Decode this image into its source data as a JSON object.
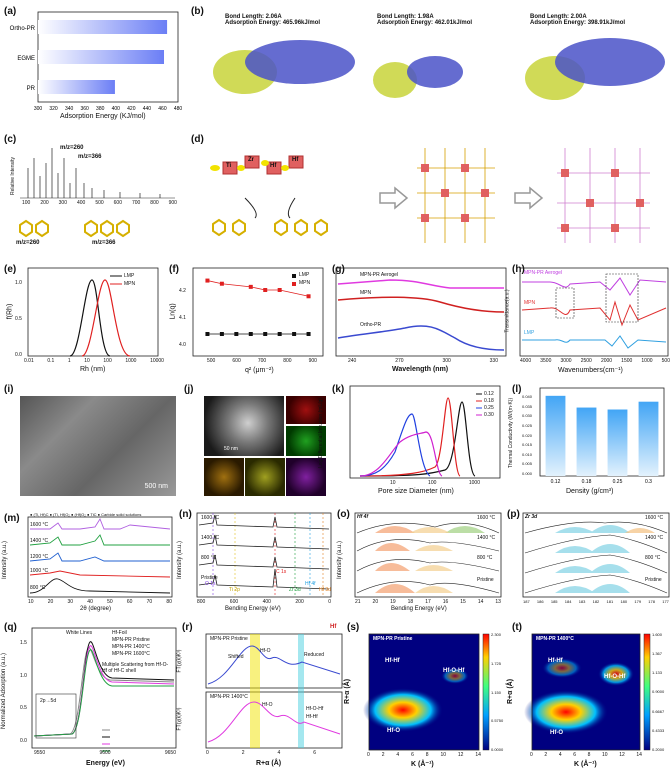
{
  "panels": {
    "a": {
      "label": "(a)",
      "xlabel": "Adsorption Energy (KJ/mol)",
      "ticks": [
        "300",
        "320",
        "340",
        "360",
        "380",
        "400",
        "420",
        "440",
        "460",
        "480"
      ]
    },
    "b": {
      "label": "(b)",
      "items": [
        {
          "bond": "Bond Length:",
          "bond_val": "2.06A",
          "energy": "Adsorption Energy:",
          "energy_val": "465.96kJ/mol"
        },
        {
          "bond": "Bond Length:",
          "bond_val": "1.98A",
          "energy": "Adsorption Energy:",
          "energy_val": "462.01kJ/mol"
        },
        {
          "bond": "Bond Length:",
          "bond_val": "2.00A",
          "energy": "Adsorption Energy:",
          "energy_val": "398.91kJ/mol"
        }
      ]
    },
    "c": {
      "label": "(c)",
      "ylabel": "Relative Intensity",
      "peak1": "m/z=260",
      "peak2": "m/z=366",
      "xticks": [
        "100",
        "200",
        "300",
        "400",
        "500",
        "600",
        "700",
        "800",
        "900"
      ],
      "mol1": "m/z=260",
      "mol2": "m/z=366"
    },
    "d": {
      "label": "(d)",
      "metals": [
        "Ti",
        "Zr",
        "Hf",
        "Hf"
      ]
    },
    "e": {
      "label": "(e)",
      "ylabel": "f(Rh)",
      "xlabel": "Rh (nm)",
      "legend": [
        "LMP",
        "MPN"
      ],
      "xticks": [
        "0.01",
        "0.1",
        "1",
        "10",
        "100",
        "1000",
        "10000"
      ],
      "yticks": [
        "0.0",
        "0.5",
        "1.0"
      ]
    },
    "f": {
      "label": "(f)",
      "ylabel": "Ln(q)",
      "xlabel": "q² (μm⁻²)",
      "legend": [
        "LMP",
        "MPN"
      ],
      "xticks": [
        "500",
        "600",
        "700",
        "800",
        "900"
      ],
      "yticks": [
        "4.0",
        "4.1",
        "4.2"
      ]
    },
    "g": {
      "label": "(g)",
      "xlabel": "Wavelength (nm)",
      "curves": [
        "MPN-PR Aerogel",
        "MPN",
        "Ortho-PR"
      ],
      "xticks": [
        "240",
        "270",
        "300",
        "330"
      ]
    },
    "h": {
      "label": "(h)",
      "ylabel": "Transmittance(a.u.)",
      "xlabel": "Wavenumbers(cm⁻¹)",
      "curves": [
        "MPN-PR Aerogel",
        "MPN",
        "LMP"
      ],
      "xticks": [
        "4000",
        "3500",
        "3000",
        "2500",
        "2000",
        "1500",
        "1000",
        "500"
      ]
    },
    "i": {
      "label": "(i)",
      "scale": "500 nm"
    },
    "j": {
      "label": "(j)",
      "scale": "50 nm"
    },
    "k": {
      "label": "(k)",
      "ylabel": "Log Differential Intrusion (mL/g)",
      "xlabel": "Pore size Diameter (nm)",
      "legend": [
        "0.12",
        "0.18",
        "0.25",
        "0.30"
      ],
      "xticks": [
        "10",
        "100",
        "1000"
      ],
      "yticks": [
        "0",
        "1",
        "2",
        "3",
        "4",
        "5",
        "6",
        "7",
        "8"
      ]
    },
    "l": {
      "label": "(l)",
      "ylabel": "Thermal Conductivity (W/(m·K))",
      "xlabel": "Density (g/cm³)",
      "yticks": [
        "0.000",
        "0.005",
        "0.010",
        "0.015",
        "0.020",
        "0.025",
        "0.030",
        "0.035",
        "0.040"
      ]
    },
    "m": {
      "label": "(m)",
      "ylabel": "Intensity (a.u.)",
      "xlabel": "2θ (degree)",
      "temps": [
        "1600 °C",
        "1400 °C",
        "1200 °C",
        "1000 °C",
        "800 °C"
      ],
      "legend": "● (Ti, Hf)C ● (Ti, Hf)O₂ ● (Hf)O₂ ● TiC ● Carbide solid solutions",
      "xticks": [
        "10",
        "20",
        "30",
        "40",
        "50",
        "60",
        "70",
        "80"
      ]
    },
    "n": {
      "label": "(n)",
      "ylabel": "Intensity (a.u.)",
      "xlabel": "Bending Energy (eV)",
      "temps": [
        "1600 °C",
        "1400 °C",
        "800 °C",
        "Pristine"
      ],
      "peaks": [
        "O 1s",
        "Ti 2p",
        "C 1s",
        "Zr 3d",
        "Hf 4f",
        "Hf 3d"
      ],
      "xticks": [
        "800",
        "600",
        "400",
        "200",
        "0"
      ]
    },
    "o": {
      "label": "(o)",
      "title": "Hf 4f",
      "ylabel": "Intensity (a.u.)",
      "xlabel": "Bending Energy (eV)",
      "temps": [
        "1600 °C",
        "1400 °C",
        "800 °C",
        "Pristine"
      ],
      "xticks": [
        "21",
        "20",
        "19",
        "18",
        "17",
        "16",
        "15",
        "14",
        "13"
      ]
    },
    "p": {
      "label": "(p)",
      "title": "Zr 3d",
      "temps": [
        "1600 °C",
        "1400 °C",
        "800 °C",
        "Pristine"
      ],
      "xticks": [
        "187",
        "186",
        "185",
        "184",
        "183",
        "182",
        "181",
        "180",
        "179",
        "178",
        "177"
      ]
    },
    "q": {
      "label": "(q)",
      "ylabel": "Normalized Adsorption (a.u.)",
      "xlabel": "Energy (eV)",
      "legend": [
        "Hf-Foil",
        "MPN-PR Pristine",
        "MPN-PR 1400°C",
        "MPN-PR 1600°C"
      ],
      "ann1": "White Lines",
      "ann2": "Multiple Scattering from Hf-O-Hf of Hf-C shell",
      "ann3": "2p→5d",
      "xticks": [
        "9550",
        "9600",
        "9650"
      ],
      "yticks": [
        "0.0",
        "0.5",
        "1.0",
        "1.5"
      ]
    },
    "r": {
      "label": "(r)",
      "ylabel1": "FT(χ(k)K³)",
      "ylabel2": "FT(χ(k)K³)",
      "xlabel": "R+α (Å)",
      "top_title": "MPN-PR Pristine",
      "bot_title": "MPN-PR 1400°C",
      "ann_top": [
        "Shifted",
        "Hf-O",
        "Reduced"
      ],
      "ann_bot": [
        "Hf-O",
        "Hf-O-Hf",
        "Hf-Hf"
      ],
      "hf": "Hf",
      "xticks": [
        "0",
        "2",
        "4",
        "6"
      ]
    },
    "s": {
      "label": "(s)",
      "title": "MPN-PR Pristine",
      "ylabel": "R+α (Å)",
      "xlabel": "K (Å⁻¹)",
      "ann": [
        "Hf-Hf",
        "Hf-O-Hf",
        "Hf-O"
      ],
      "cbar": [
        "2.300",
        "1.725",
        "1.150",
        "0.5750",
        "0.0000"
      ],
      "xticks": [
        "0",
        "2",
        "4",
        "6",
        "8",
        "10",
        "12",
        "14"
      ]
    },
    "t": {
      "label": "(t)",
      "title": "MPN-PR 1400°C",
      "ylabel": "R+α (Å)",
      "xlabel": "K (Å⁻¹)",
      "ann": [
        "Hf-Hf",
        "Hf-O-Hf",
        "Hf-O"
      ],
      "cbar": [
        "1.600",
        "1.367",
        "1.133",
        "0.9000",
        "0.6667",
        "0.4333",
        "0.2000"
      ],
      "xticks": [
        "0",
        "2",
        "4",
        "6",
        "8",
        "10",
        "12",
        "14"
      ]
    }
  },
  "chart_data": [
    {
      "type": "bar",
      "orientation": "horizontal",
      "categories": [
        "Ortho-PR",
        "EGME",
        "PR"
      ],
      "values": [
        465.96,
        462.01,
        398.91
      ],
      "xlim": [
        300,
        480
      ],
      "xlabel": "Adsorption Energy (KJ/mol)",
      "title": ""
    },
    {
      "type": "line",
      "xlabel": "Rh (nm)",
      "ylabel": "f(Rh)",
      "series": [
        {
          "name": "LMP",
          "x": [
            1,
            2,
            3,
            5,
            10
          ],
          "y": [
            0,
            0.6,
            1.0,
            0.6,
            0
          ]
        },
        {
          "name": "MPN",
          "x": [
            3,
            6,
            10,
            20,
            50
          ],
          "y": [
            0,
            0.6,
            1.0,
            0.5,
            0
          ]
        }
      ]
    },
    {
      "type": "scatter",
      "xlabel": "q² (μm⁻²)",
      "ylabel": "Ln(q)",
      "series": [
        {
          "name": "LMP",
          "x": [
            550,
            600,
            650,
            700,
            750,
            800,
            850,
            900
          ],
          "y": [
            4.05,
            4.05,
            4.05,
            4.05,
            4.05,
            4.05,
            4.05,
            4.05
          ]
        },
        {
          "name": "MPN",
          "x": [
            550,
            600,
            700,
            750,
            800,
            900
          ],
          "y": [
            4.22,
            4.21,
            4.2,
            4.19,
            4.19,
            4.17
          ]
        }
      ]
    },
    {
      "type": "line",
      "xlabel": "Pore size Diameter (nm)",
      "ylabel": "Log Differential Intrusion (mL/g)",
      "series": [
        {
          "name": "0.12",
          "peak_x": 500,
          "peak_y": 7.5
        },
        {
          "name": "0.18",
          "peak_x": 250,
          "peak_y": 8
        },
        {
          "name": "0.25",
          "peak_x": 60,
          "peak_y": 6.2
        },
        {
          "name": "0.30",
          "peak_x": 100,
          "peak_y": 4.2
        }
      ]
    },
    {
      "type": "bar",
      "categories": [
        "0.12",
        "0.18",
        "0.25",
        "0.3"
      ],
      "values": [
        0.041,
        0.035,
        0.034,
        0.038
      ],
      "xlabel": "Density (g/cm³)",
      "ylabel": "Thermal Conductivity (W/(m·K))",
      "ylim": [
        0,
        0.045
      ]
    }
  ]
}
